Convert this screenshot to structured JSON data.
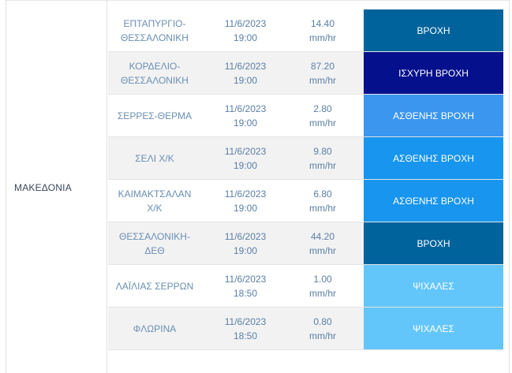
{
  "region": "ΜΑΚΕΔΟΝΙΑ",
  "rows": [
    {
      "station": [
        "ΕΠΤΑΠΥΡΓΙΟ-",
        "ΘΕΣΣΑΛΟΝΙΚΗ"
      ],
      "time": [
        "11/6/2023",
        "19:00"
      ],
      "value": [
        "14.40",
        "mm/hr"
      ],
      "status": "ΒΡΟΧΗ",
      "status_color": "#00639c"
    },
    {
      "station": [
        "ΚΟΡΔΕΛΙΟ-",
        "ΘΕΣΣΑΛΟΝΙΚΗ"
      ],
      "time": [
        "11/6/2023",
        "19:00"
      ],
      "value": [
        "87.20",
        "mm/hr"
      ],
      "status": "ΙΣΧΥΡΗ ΒΡΟΧΗ",
      "status_color": "#05118c"
    },
    {
      "station": [
        "ΣΕΡΡΕΣ-ΘΕΡΜΑ"
      ],
      "time": [
        "11/6/2023",
        "19:00"
      ],
      "value": [
        "2.80",
        "mm/hr"
      ],
      "status": "ΑΣΘΕΝΗΣ ΒΡΟΧΗ",
      "status_color": "#3b96f0"
    },
    {
      "station": [
        "ΣΕΛΙ Χ/Κ"
      ],
      "time": [
        "11/6/2023",
        "19:00"
      ],
      "value": [
        "9.80",
        "mm/hr"
      ],
      "status": "ΑΣΘΕΝΗΣ ΒΡΟΧΗ",
      "status_color": "#1895ee"
    },
    {
      "station": [
        "ΚΑΙΜΑΚΤΣΑΛΑΝ",
        "Χ/Κ"
      ],
      "time": [
        "11/6/2023",
        "19:00"
      ],
      "value": [
        "6.80",
        "mm/hr"
      ],
      "status": "ΑΣΘΕΝΗΣ ΒΡΟΧΗ",
      "status_color": "#1895ee"
    },
    {
      "station": [
        "ΘΕΣΣΑΛΟΝΙΚΗ-",
        "ΔΕΘ"
      ],
      "time": [
        "11/6/2023",
        "19:00"
      ],
      "value": [
        "44.20",
        "mm/hr"
      ],
      "status": "ΒΡΟΧΗ",
      "status_color": "#00639c"
    },
    {
      "station": [
        "ΛΑΪΛΙΑΣ ΣΕΡΡΩΝ"
      ],
      "time": [
        "11/6/2023",
        "18:50"
      ],
      "value": [
        "1.00",
        "mm/hr"
      ],
      "status": "ΨΙΧΑΛΕΣ",
      "status_color": "#63c6fb"
    },
    {
      "station": [
        "ΦΛΩΡΙΝΑ"
      ],
      "time": [
        "11/6/2023",
        "18:50"
      ],
      "value": [
        "0.80",
        "mm/hr"
      ],
      "status": "ΨΙΧΑΛΕΣ",
      "status_color": "#63c6fb"
    }
  ]
}
